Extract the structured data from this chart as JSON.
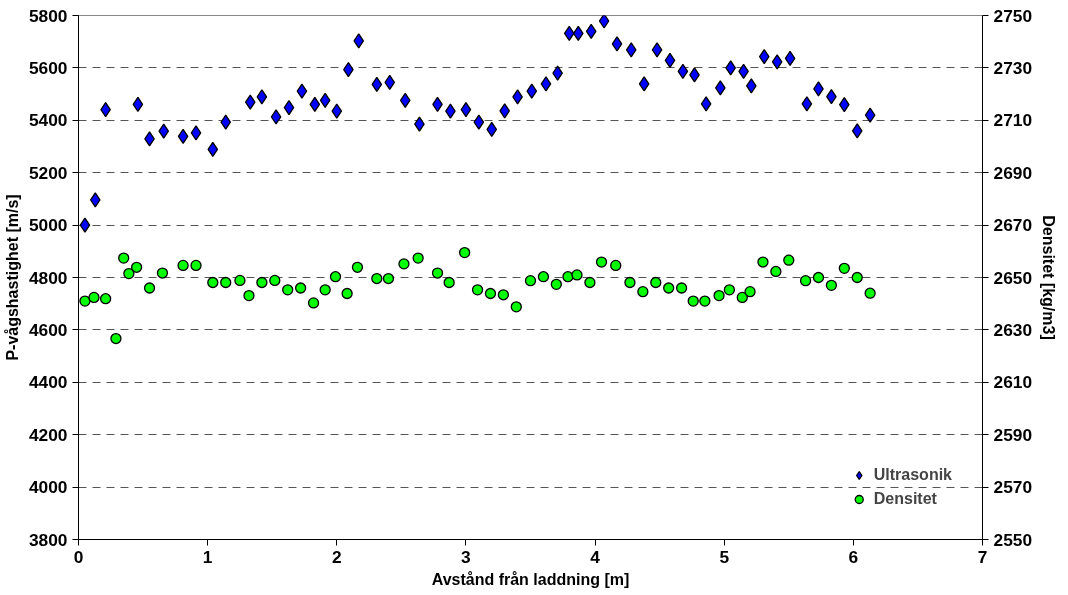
{
  "chart_data": {
    "type": "scatter",
    "xlabel": "Avstånd från laddning [m]",
    "ylabel": "P-vågshastighet [m/s]",
    "y2label": "Densitet [kg/m3]",
    "xlim": [
      0,
      7
    ],
    "xticks": [
      0,
      1,
      2,
      3,
      4,
      5,
      6,
      7
    ],
    "ylim": [
      3800,
      5800
    ],
    "yticks": [
      3800,
      4000,
      4200,
      4400,
      4600,
      4800,
      5000,
      5200,
      5400,
      5600,
      5800
    ],
    "y2lim": [
      2550,
      2750
    ],
    "y2ticks": [
      2550,
      2570,
      2590,
      2610,
      2630,
      2650,
      2670,
      2690,
      2710,
      2730,
      2750
    ],
    "grid": "y",
    "legend": "bottom right",
    "series": [
      {
        "name": "Ultrasonik",
        "color": "#0000ff",
        "marker": "diamond",
        "x": [
          0.05,
          0.13,
          0.21,
          0.46,
          0.55,
          0.66,
          0.81,
          0.91,
          1.04,
          1.14,
          1.33,
          1.42,
          1.53,
          1.63,
          1.73,
          1.83,
          1.91,
          2.0,
          2.09,
          2.17,
          2.31,
          2.41,
          2.53,
          2.64,
          2.78,
          2.88,
          3.0,
          3.1,
          3.2,
          3.3,
          3.4,
          3.51,
          3.62,
          3.71,
          3.8,
          3.87,
          3.97,
          4.07,
          4.17,
          4.28,
          4.38,
          4.48,
          4.58,
          4.68,
          4.77,
          4.86,
          4.97,
          5.05,
          5.15,
          5.21,
          5.31,
          5.41,
          5.51,
          5.64,
          5.73,
          5.83,
          5.93,
          6.03,
          6.13
        ],
        "values": [
          5000,
          5096,
          5441,
          5461,
          5329,
          5359,
          5339,
          5352,
          5289,
          5393,
          5469,
          5489,
          5413,
          5448,
          5511,
          5461,
          5476,
          5435,
          5593,
          5703,
          5537,
          5545,
          5476,
          5385,
          5461,
          5435,
          5441,
          5393,
          5365,
          5436,
          5489,
          5511,
          5539,
          5580,
          5732,
          5732,
          5739,
          5779,
          5692,
          5669,
          5539,
          5669,
          5629,
          5587,
          5573,
          5463,
          5524,
          5600,
          5587,
          5531,
          5643,
          5623,
          5636,
          5463,
          5520,
          5490,
          5460,
          5360,
          5420
        ]
      },
      {
        "name": "Densitet",
        "color": "#00ff00",
        "marker": "circle",
        "axis": "y2",
        "x": [
          0.05,
          0.12,
          0.21,
          0.29,
          0.35,
          0.39,
          0.45,
          0.55,
          0.65,
          0.81,
          0.91,
          1.04,
          1.14,
          1.25,
          1.32,
          1.42,
          1.52,
          1.62,
          1.72,
          1.82,
          1.91,
          1.99,
          2.08,
          2.16,
          2.31,
          2.4,
          2.52,
          2.63,
          2.78,
          2.87,
          2.99,
          3.09,
          3.19,
          3.29,
          3.39,
          3.5,
          3.6,
          3.7,
          3.79,
          3.86,
          3.96,
          4.05,
          4.16,
          4.27,
          4.37,
          4.47,
          4.57,
          4.67,
          4.76,
          4.85,
          4.96,
          5.04,
          5.14,
          5.2,
          5.3,
          5.4,
          5.5,
          5.63,
          5.73,
          5.83,
          5.93,
          6.03,
          6.13
        ],
        "values": [
          2641.0,
          2642.4,
          2641.9,
          2626.7,
          2657.4,
          2651.5,
          2653.9,
          2646.0,
          2651.7,
          2654.6,
          2654.6,
          2648.1,
          2648.1,
          2648.9,
          2643.1,
          2648.1,
          2648.9,
          2645.3,
          2646.0,
          2640.3,
          2645.3,
          2650.3,
          2643.9,
          2653.9,
          2649.6,
          2649.6,
          2655.2,
          2657.4,
          2651.7,
          2648.1,
          2659.5,
          2645.3,
          2643.9,
          2643.4,
          2638.8,
          2648.8,
          2650.3,
          2647.4,
          2650.3,
          2651.0,
          2648.1,
          2655.9,
          2654.6,
          2648.1,
          2644.6,
          2648.1,
          2646.0,
          2646.0,
          2641.0,
          2641.0,
          2643.1,
          2645.3,
          2642.4,
          2644.6,
          2655.9,
          2652.3,
          2656.6,
          2648.8,
          2650.0,
          2647.0,
          2653.5,
          2650.0,
          2644.0
        ]
      }
    ]
  }
}
